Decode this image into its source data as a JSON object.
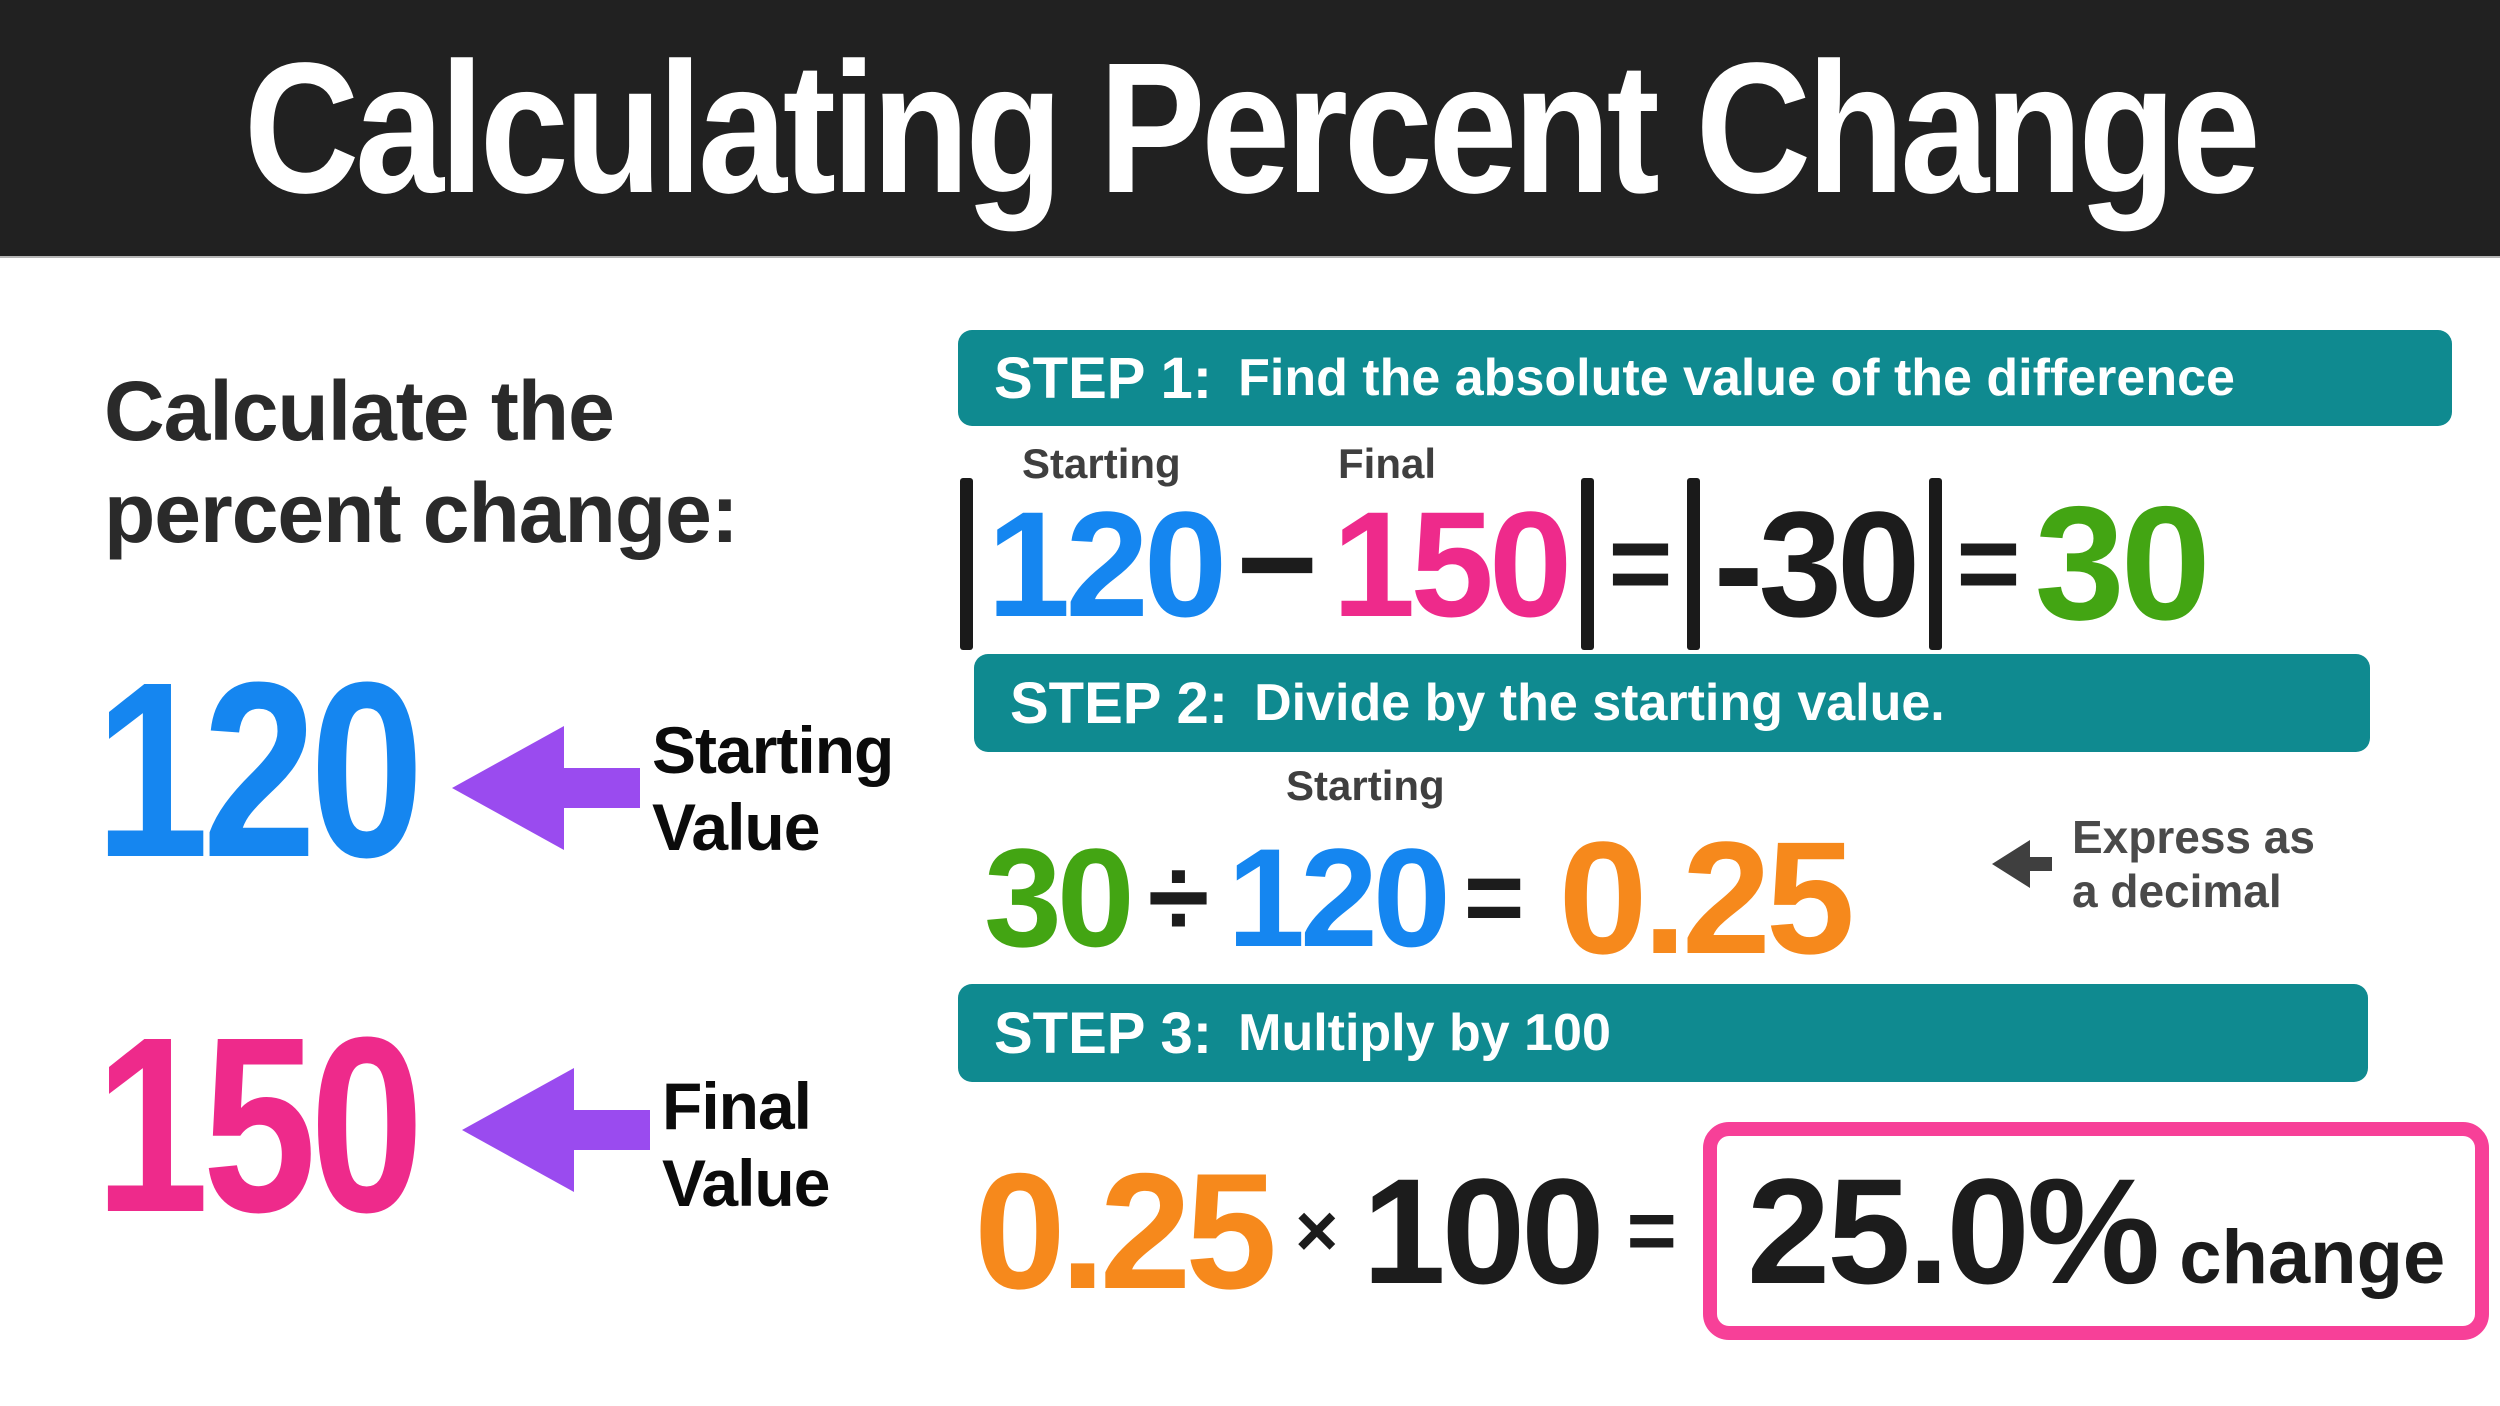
{
  "title": "Calculating Percent Change",
  "colors": {
    "header-bg": "#212121",
    "teal": "#0f8a90",
    "blue": "#1586f0",
    "pink": "#ee2a8b",
    "green": "#43a513",
    "orange": "#f6891c",
    "purple": "#9a4bef",
    "box-border": "#f74098",
    "ink": "#1c1c1c",
    "gray-label": "#3f3f3f"
  },
  "prompt": {
    "line1": "Calculate the",
    "line2": "percent change:"
  },
  "starting_value": {
    "number": "120",
    "label_line1": "Starting",
    "label_line2": "Value"
  },
  "final_value": {
    "number": "150",
    "label_line1": "Final",
    "label_line2": "Value"
  },
  "step1": {
    "prefix": "STEP 1:",
    "title": "Find the absolute value of the difference",
    "label_starting": "Starting",
    "label_final": "Final",
    "expr_start": "120",
    "minus": "−",
    "expr_final": "150",
    "equals": "=",
    "signed_result": "-30",
    "result": "30"
  },
  "step2": {
    "prefix": "STEP 2:",
    "title": "Divide by the starting value.",
    "label_starting": "Starting",
    "numerator": "30",
    "divide_sign": "÷",
    "denominator": "120",
    "equals": "=",
    "result": "0.25",
    "note_line1": "Express as",
    "note_line2": "a decimal"
  },
  "step3": {
    "prefix": "STEP 3:",
    "title": "Multiply by 100",
    "decimal": "0.25",
    "times_sign": "×",
    "multiplier": "100",
    "equals": "=",
    "result_percent": "25.0%",
    "result_suffix": "change"
  }
}
